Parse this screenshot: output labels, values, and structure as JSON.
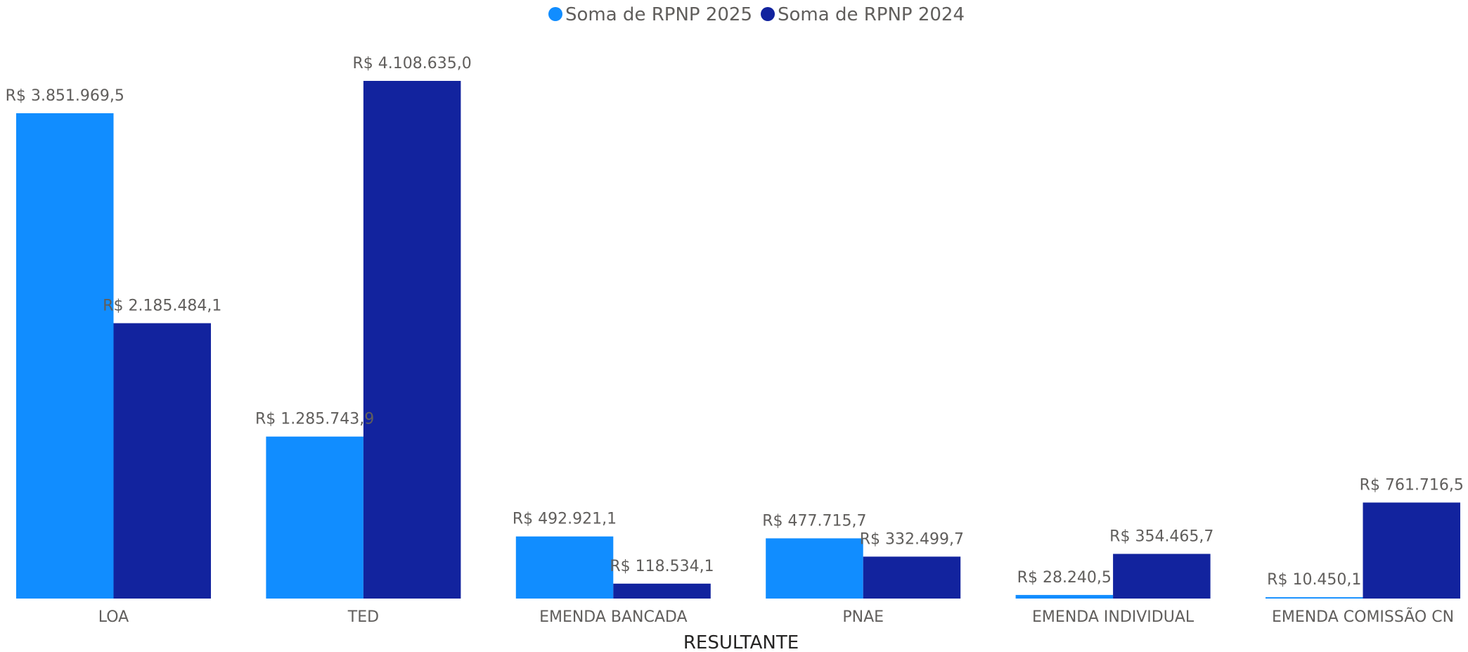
{
  "chart_data": {
    "type": "bar",
    "title": "",
    "xlabel": "RESULTANTE",
    "ylabel": "",
    "categories": [
      "LOA",
      "TED",
      "EMENDA BANCADA",
      "PNAE",
      "EMENDA INDIVIDUAL",
      "EMENDA COMISSÃO CN"
    ],
    "series": [
      {
        "name": "Soma de RPNP 2025",
        "color": "#118dff",
        "values": [
          3851969.5,
          1285743.9,
          492921.1,
          477715.7,
          28240.5,
          10450.1
        ],
        "labels": [
          "R$ 3.851.969,5",
          "R$ 1.285.743,9",
          "R$ 492.921,1",
          "R$ 477.715,7",
          "R$ 28.240,5",
          "R$ 10.450,1"
        ]
      },
      {
        "name": "Soma de RPNP 2024",
        "color": "#12239e",
        "values": [
          2185484.1,
          4108635.0,
          118534.1,
          332499.7,
          354465.7,
          761716.5
        ],
        "labels": [
          "R$ 2.185.484,1",
          "R$ 4.108.635,0",
          "R$ 118.534,1",
          "R$ 332.499,7",
          "R$ 354.465,7",
          "R$ 761.716,5"
        ]
      }
    ],
    "ylim": [
      0,
      4108635.0
    ],
    "grid": false,
    "legend_position": "top-center"
  }
}
